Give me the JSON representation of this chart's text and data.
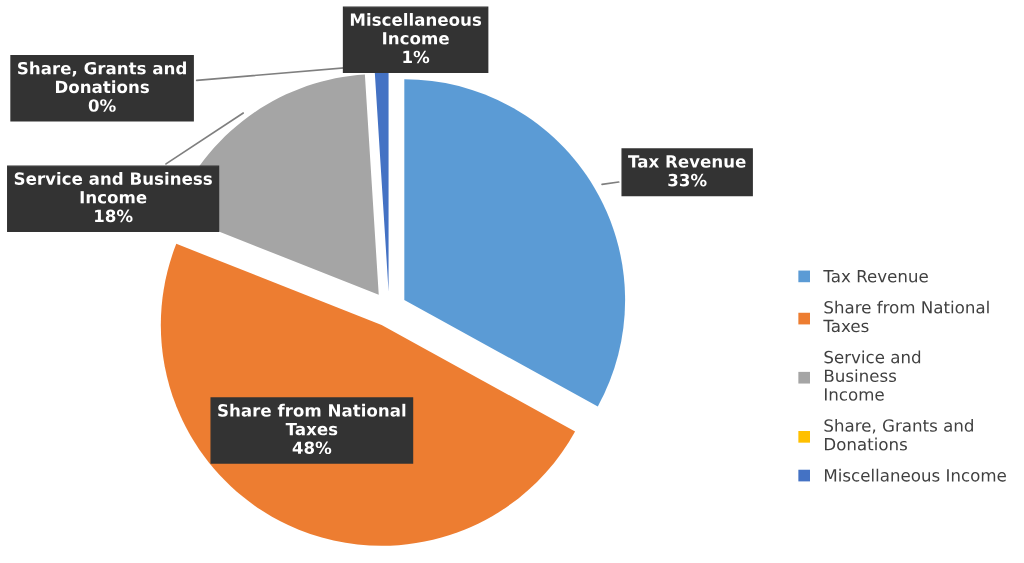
{
  "chart_data": {
    "type": "pie",
    "categories": [
      "Tax Revenue",
      "Share from National Taxes",
      "Service and Business Income",
      "Share, Grants and Donations",
      "Miscellaneous Income"
    ],
    "values": [
      33,
      48,
      18,
      0,
      1
    ],
    "value_labels": [
      "33%",
      "48%",
      "18%",
      "0%",
      "1%"
    ],
    "colors": [
      "#5b9bd5",
      "#ed7d31",
      "#a5a5a5",
      "#ffc000",
      "#4472c4"
    ],
    "legend": "right"
  }
}
